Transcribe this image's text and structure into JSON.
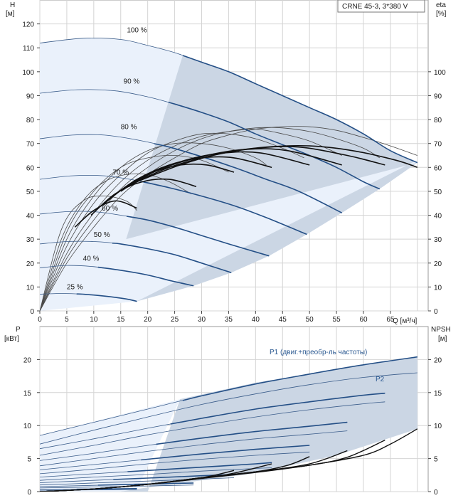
{
  "title": "CRNE 45-3, 3*380 V",
  "chart_data": [
    {
      "type": "line",
      "name": "head",
      "ylabel": "H",
      "yunit": "[м]",
      "y2label": "eta",
      "y2unit": "[%]",
      "xlabel": "Q [м³/ч]",
      "xlim": [
        0,
        72
      ],
      "ylim": [
        0,
        130
      ],
      "xticks": [
        0,
        5,
        10,
        15,
        20,
        25,
        30,
        35,
        40,
        45,
        50,
        55,
        60,
        65
      ],
      "yticks": [
        0,
        10,
        20,
        30,
        40,
        50,
        60,
        70,
        80,
        90,
        100,
        110,
        120
      ],
      "y2ticks": [
        0,
        10,
        20,
        30,
        40,
        50,
        60,
        70,
        80,
        90,
        100
      ],
      "speed_curves": [
        {
          "label": "100 %",
          "label_q": 18,
          "label_h": 116.5,
          "q": [
            0,
            8,
            15,
            20,
            25,
            30,
            35,
            40,
            45,
            50,
            55,
            60,
            65,
            70
          ],
          "h": [
            112,
            114,
            113.5,
            111,
            108,
            104,
            100,
            95,
            90,
            85,
            80,
            74,
            67,
            62
          ]
        },
        {
          "label": "90 %",
          "label_q": 17,
          "label_h": 95,
          "q": [
            0,
            7,
            14,
            20,
            25,
            30,
            35,
            40,
            45,
            50,
            55,
            60,
            63
          ],
          "h": [
            91,
            92.5,
            92,
            89.5,
            86.5,
            83,
            79,
            74,
            69.5,
            65,
            60,
            54,
            51
          ]
        },
        {
          "label": "80 %",
          "label_q": 16.5,
          "label_h": 76,
          "q": [
            0,
            6,
            12,
            18,
            24,
            30,
            36,
            42,
            48,
            56
          ],
          "h": [
            72,
            73.5,
            73.5,
            71.5,
            68.5,
            64.5,
            60,
            55,
            50,
            41
          ]
        },
        {
          "label": "70 %",
          "label_q": 15,
          "label_h": 57,
          "q": [
            0,
            6,
            12,
            18,
            24,
            30,
            36,
            42,
            49.5
          ],
          "h": [
            55,
            56.5,
            56.5,
            54.5,
            51.5,
            48,
            44,
            39,
            32
          ]
        },
        {
          "label": "60 %",
          "label_q": 13,
          "label_h": 42,
          "q": [
            0,
            5,
            10,
            15,
            20,
            25,
            30,
            35,
            42.5
          ],
          "h": [
            40.5,
            41.5,
            41.5,
            40,
            38,
            35,
            31.5,
            28,
            23
          ]
        },
        {
          "label": "50 %",
          "label_q": 11.5,
          "label_h": 31,
          "q": [
            0,
            5,
            10,
            15,
            20,
            25,
            30,
            35.5
          ],
          "h": [
            28,
            29,
            29,
            28,
            26,
            23.5,
            20,
            16
          ]
        },
        {
          "label": "40 %",
          "label_q": 9.5,
          "label_h": 21,
          "q": [
            0,
            5,
            10,
            15,
            20,
            24.5,
            28.5
          ],
          "h": [
            18,
            19,
            18.5,
            17,
            15,
            12.5,
            10.5
          ]
        },
        {
          "label": "25 %",
          "label_q": 6.5,
          "label_h": 9,
          "q": [
            0,
            4,
            8,
            12,
            16,
            18
          ],
          "h": [
            7,
            7.3,
            7,
            6.2,
            5,
            4
          ]
        }
      ],
      "eta_curves_thin": [
        {
          "q": [
            0,
            4,
            8,
            12,
            16,
            18
          ],
          "eta": [
            0,
            34,
            46,
            48,
            46,
            42
          ]
        },
        {
          "q": [
            0,
            4,
            8,
            12,
            16,
            20,
            24,
            28
          ],
          "eta": [
            0,
            30,
            46,
            54,
            57,
            57,
            54,
            49
          ]
        },
        {
          "q": [
            0,
            5,
            10,
            15,
            20,
            25,
            30,
            35
          ],
          "eta": [
            0,
            33,
            50,
            60,
            64,
            65,
            63,
            58
          ]
        },
        {
          "q": [
            0,
            5,
            10,
            15,
            20,
            25,
            30,
            35,
            40,
            42
          ],
          "eta": [
            0,
            30,
            48,
            60,
            67,
            70,
            70,
            68,
            64,
            61
          ]
        },
        {
          "q": [
            0,
            5,
            10,
            15,
            20,
            25,
            30,
            35,
            40,
            45,
            49
          ],
          "eta": [
            0,
            27,
            45,
            57,
            66,
            71,
            74,
            74,
            72,
            68,
            64
          ]
        },
        {
          "q": [
            0,
            5,
            10,
            15,
            20,
            25,
            30,
            35,
            40,
            45,
            50,
            56
          ],
          "eta": [
            0,
            24,
            41,
            54,
            63,
            69,
            73,
            75,
            76,
            74,
            71,
            65
          ]
        },
        {
          "q": [
            0,
            5,
            10,
            15,
            20,
            25,
            30,
            35,
            40,
            45,
            50,
            55,
            60,
            63
          ],
          "eta": [
            0,
            22,
            38,
            51,
            60,
            67,
            72,
            75,
            76.5,
            76.5,
            75,
            72,
            68,
            64
          ]
        },
        {
          "q": [
            0,
            5,
            10,
            15,
            20,
            25,
            30,
            35,
            40,
            45,
            50,
            55,
            60,
            65,
            70
          ],
          "eta": [
            0,
            20,
            35,
            48,
            57,
            64,
            70,
            73.5,
            76,
            77,
            77,
            75.5,
            72.5,
            69,
            65
          ]
        }
      ],
      "eta_curves_bold": [
        {
          "q": [
            6.5,
            10,
            14,
            18
          ],
          "eta": [
            35,
            42,
            46,
            43
          ]
        },
        {
          "q": [
            9.5,
            14,
            19,
            24,
            29
          ],
          "eta": [
            40,
            49,
            54,
            55,
            52
          ]
        },
        {
          "q": [
            11.5,
            16,
            21,
            26,
            31,
            36
          ],
          "eta": [
            44,
            52,
            58,
            61,
            61,
            58
          ]
        },
        {
          "q": [
            13,
            18,
            24,
            30,
            36,
            43
          ],
          "eta": [
            47,
            55,
            61,
            64,
            64,
            60
          ]
        },
        {
          "q": [
            15,
            20,
            27,
            34,
            41,
            50
          ],
          "eta": [
            50,
            57,
            63,
            66,
            66,
            61
          ]
        },
        {
          "q": [
            16.5,
            22,
            30,
            38,
            46,
            56
          ],
          "eta": [
            52,
            59,
            64.5,
            67.5,
            67,
            61
          ]
        },
        {
          "q": [
            17,
            24,
            32,
            40,
            48,
            57,
            64
          ],
          "eta": [
            53,
            60,
            65,
            68,
            68.5,
            65,
            61
          ]
        },
        {
          "q": [
            18,
            26,
            34,
            42,
            50,
            58,
            66,
            70
          ],
          "eta": [
            54,
            61,
            66,
            68.5,
            69,
            67,
            63,
            60
          ]
        }
      ]
    },
    {
      "type": "line",
      "name": "power",
      "ylabel": "P",
      "yunit": "[кВт]",
      "y2label": "NPSH",
      "y2unit": "[м]",
      "xlim": [
        0,
        72
      ],
      "ylim": [
        0,
        25
      ],
      "yticks": [
        0,
        5,
        10,
        15,
        20
      ],
      "y2ticks": [
        0,
        5,
        10,
        15,
        20
      ],
      "series_labels": {
        "p1": "P1 (двиг.+преобр-ль частоты)",
        "p2": "P2"
      },
      "p1_curves": [
        {
          "q": [
            0,
            10,
            20,
            30,
            40,
            50,
            60,
            70
          ],
          "p": [
            8.5,
            10.5,
            12.5,
            14.5,
            16.3,
            17.8,
            19.2,
            20.4
          ]
        },
        {
          "q": [
            0,
            10,
            20,
            30,
            40,
            50,
            60,
            64
          ],
          "p": [
            6.5,
            8.0,
            9.6,
            11.1,
            12.5,
            13.6,
            14.6,
            14.9
          ]
        },
        {
          "q": [
            0,
            10,
            20,
            30,
            40,
            50,
            57
          ],
          "p": [
            4.7,
            5.8,
            7.0,
            8.1,
            9.1,
            9.9,
            10.5
          ]
        },
        {
          "q": [
            0,
            10,
            20,
            30,
            40,
            50
          ],
          "p": [
            3.3,
            4.1,
            4.9,
            5.7,
            6.4,
            7.0
          ]
        },
        {
          "q": [
            0,
            10,
            20,
            30,
            40,
            43
          ],
          "p": [
            2.2,
            2.7,
            3.2,
            3.7,
            4.2,
            4.4
          ]
        },
        {
          "q": [
            0,
            10,
            20,
            30,
            36
          ],
          "p": [
            1.35,
            1.7,
            2.05,
            2.4,
            2.6
          ]
        },
        {
          "q": [
            0,
            10,
            20,
            28.5
          ],
          "p": [
            0.75,
            0.95,
            1.15,
            1.3
          ]
        },
        {
          "q": [
            0,
            10,
            18
          ],
          "p": [
            0.3,
            0.38,
            0.45
          ]
        }
      ],
      "p2_curves": [
        {
          "q": [
            0,
            10,
            20,
            30,
            40,
            50,
            60,
            70
          ],
          "p": [
            7.2,
            9.3,
            11.3,
            13.2,
            14.8,
            16.2,
            17.3,
            18.0
          ]
        },
        {
          "q": [
            0,
            10,
            20,
            30,
            40,
            50,
            60,
            64
          ],
          "p": [
            5.5,
            7.0,
            8.6,
            10.0,
            11.3,
            12.4,
            13.3,
            13.6
          ]
        },
        {
          "q": [
            0,
            10,
            20,
            30,
            40,
            50,
            57
          ],
          "p": [
            3.9,
            5.0,
            6.1,
            7.1,
            8.0,
            8.7,
            9.2
          ]
        },
        {
          "q": [
            0,
            10,
            20,
            30,
            40,
            50
          ],
          "p": [
            2.7,
            3.4,
            4.2,
            4.9,
            5.5,
            6.0
          ]
        },
        {
          "q": [
            0,
            10,
            20,
            30,
            40,
            43
          ],
          "p": [
            1.7,
            2.2,
            2.6,
            3.1,
            3.5,
            3.6
          ]
        },
        {
          "q": [
            0,
            10,
            20,
            30,
            36
          ],
          "p": [
            1.0,
            1.3,
            1.6,
            1.9,
            2.1
          ]
        },
        {
          "q": [
            0,
            10,
            20,
            28.5
          ],
          "p": [
            0.55,
            0.7,
            0.85,
            1.0
          ]
        },
        {
          "q": [
            0,
            10,
            18
          ],
          "p": [
            0.2,
            0.26,
            0.32
          ]
        }
      ],
      "npsh_curves": [
        {
          "q": [
            0,
            10,
            20,
            30,
            40,
            50,
            60,
            65,
            70
          ],
          "npsh": [
            0,
            0.4,
            1.1,
            2.0,
            2.9,
            4.0,
            5.5,
            7.2,
            9.5
          ]
        },
        {
          "q": [
            0,
            10,
            20,
            30,
            40,
            50,
            57,
            64
          ],
          "npsh": [
            0,
            0.4,
            1.1,
            2.1,
            3.0,
            4.0,
            5.2,
            7.8
          ]
        },
        {
          "q": [
            0,
            10,
            20,
            30,
            40,
            50,
            57
          ],
          "npsh": [
            0,
            0.4,
            1.1,
            2.1,
            3.0,
            4.2,
            6.2
          ]
        },
        {
          "q": [
            0,
            10,
            20,
            30,
            40,
            46,
            50
          ],
          "npsh": [
            0,
            0.4,
            1.1,
            2.1,
            3.0,
            4.0,
            5.3
          ]
        },
        {
          "q": [
            0,
            10,
            20,
            30,
            36,
            43
          ],
          "npsh": [
            0,
            0.4,
            1.1,
            2.0,
            2.8,
            4.2
          ]
        },
        {
          "q": [
            0,
            10,
            20,
            30,
            36
          ],
          "npsh": [
            0,
            0.4,
            1.1,
            2.1,
            3.2
          ]
        }
      ]
    }
  ]
}
